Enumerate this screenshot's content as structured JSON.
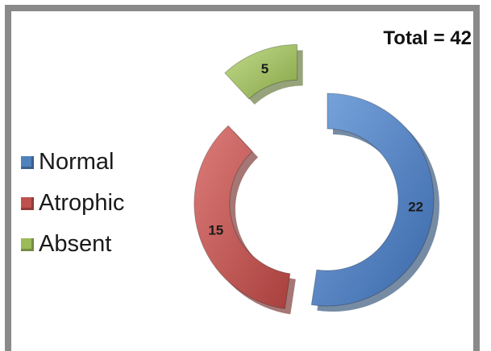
{
  "chart_data": {
    "type": "pie",
    "subtype": "exploded-donut",
    "total_label": "Total = 42",
    "categories": [
      "Normal",
      "Atrophic",
      "Absent"
    ],
    "values": [
      22,
      15,
      5
    ],
    "data_labels": [
      "22",
      "15",
      "5"
    ],
    "colors": [
      "#4f81bd",
      "#c0504d",
      "#9bbb59"
    ],
    "legend_position": "left"
  }
}
